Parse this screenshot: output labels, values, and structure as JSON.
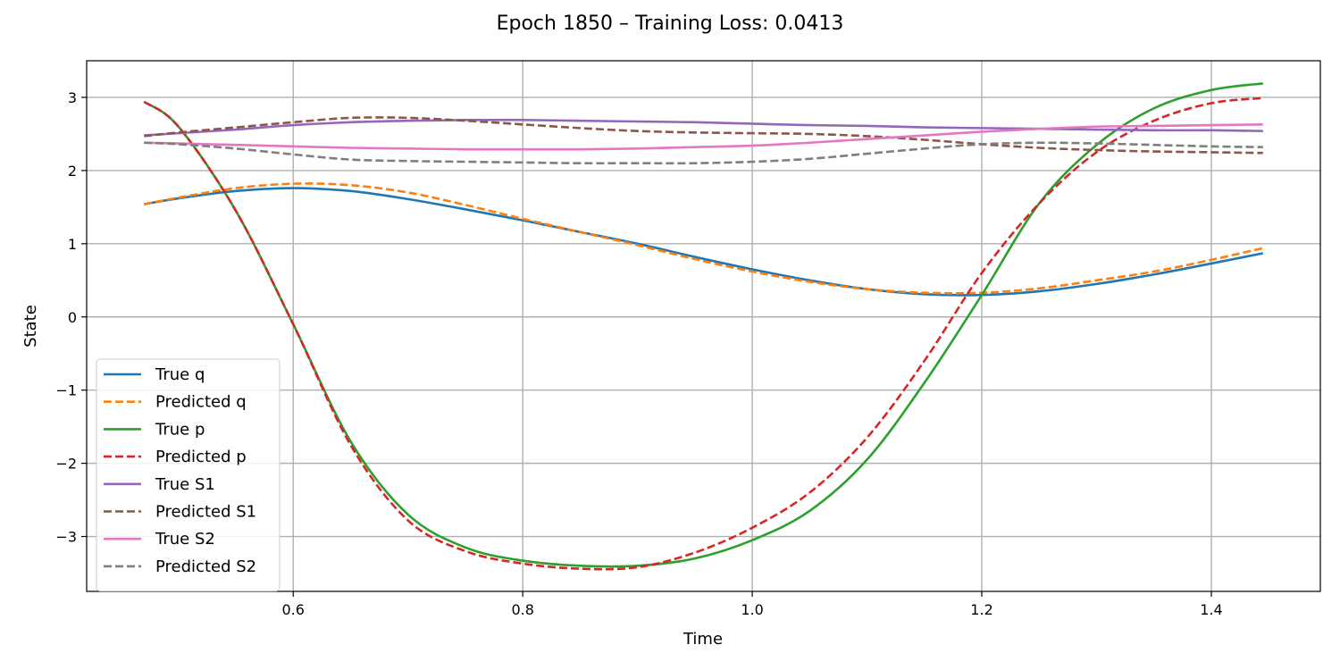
{
  "chart_data": {
    "type": "line",
    "title": "Epoch 1850 – Training Loss: 0.0413",
    "xlabel": "Time",
    "ylabel": "State",
    "xlim": [
      0.42,
      1.495
    ],
    "ylim": [
      -3.75,
      3.5
    ],
    "xticks": [
      0.6,
      0.8,
      1.0,
      1.2,
      1.4
    ],
    "xtick_labels": [
      "0.6",
      "0.8",
      "1.0",
      "1.2",
      "1.4"
    ],
    "yticks": [
      -3,
      -2,
      -1,
      0,
      1,
      2,
      3
    ],
    "ytick_labels": [
      "−3",
      "−2",
      "−1",
      "0",
      "1",
      "2",
      "3"
    ],
    "grid": true,
    "legend_position": "lower-left",
    "x": [
      0.47,
      0.5,
      0.55,
      0.6,
      0.65,
      0.7,
      0.75,
      0.8,
      0.85,
      0.9,
      0.95,
      1.0,
      1.05,
      1.1,
      1.15,
      1.2,
      1.25,
      1.3,
      1.35,
      1.4,
      1.445
    ],
    "series": [
      {
        "name": "True q",
        "color": "#1f77b4",
        "dash": "solid",
        "values": [
          1.54,
          1.62,
          1.72,
          1.76,
          1.72,
          1.61,
          1.47,
          1.32,
          1.16,
          1.0,
          0.82,
          0.65,
          0.5,
          0.38,
          0.31,
          0.3,
          0.35,
          0.45,
          0.58,
          0.73,
          0.87
        ]
      },
      {
        "name": "Predicted q",
        "color": "#ff7f0e",
        "dash": "dashed",
        "values": [
          1.54,
          1.63,
          1.76,
          1.82,
          1.8,
          1.7,
          1.53,
          1.34,
          1.16,
          0.98,
          0.79,
          0.62,
          0.48,
          0.38,
          0.33,
          0.33,
          0.39,
          0.5,
          0.62,
          0.78,
          0.94
        ]
      },
      {
        "name": "True p",
        "color": "#2ca02c",
        "dash": "solid",
        "values": [
          2.94,
          2.6,
          1.45,
          -0.1,
          -1.7,
          -2.7,
          -3.15,
          -3.33,
          -3.4,
          -3.4,
          -3.3,
          -3.05,
          -2.65,
          -1.95,
          -0.9,
          0.3,
          1.55,
          2.35,
          2.85,
          3.1,
          3.19
        ]
      },
      {
        "name": "Predicted p",
        "color": "#d62728",
        "dash": "dashed",
        "values": [
          2.94,
          2.6,
          1.45,
          -0.1,
          -1.75,
          -2.78,
          -3.2,
          -3.37,
          -3.44,
          -3.42,
          -3.22,
          -2.88,
          -2.4,
          -1.65,
          -0.6,
          0.6,
          1.55,
          2.25,
          2.68,
          2.92,
          2.99
        ]
      },
      {
        "name": "True S1",
        "color": "#9467bd",
        "dash": "solid",
        "values": [
          2.48,
          2.51,
          2.56,
          2.62,
          2.66,
          2.68,
          2.69,
          2.69,
          2.68,
          2.67,
          2.66,
          2.64,
          2.62,
          2.61,
          2.59,
          2.58,
          2.57,
          2.56,
          2.55,
          2.55,
          2.54
        ]
      },
      {
        "name": "Predicted S1",
        "color": "#8c564b",
        "dash": "dashed",
        "values": [
          2.47,
          2.52,
          2.59,
          2.66,
          2.72,
          2.72,
          2.68,
          2.63,
          2.58,
          2.54,
          2.52,
          2.51,
          2.5,
          2.47,
          2.42,
          2.36,
          2.31,
          2.28,
          2.26,
          2.25,
          2.24
        ]
      },
      {
        "name": "True S2",
        "color": "#e377c2",
        "dash": "solid",
        "values": [
          2.38,
          2.37,
          2.35,
          2.33,
          2.31,
          2.3,
          2.29,
          2.29,
          2.29,
          2.3,
          2.32,
          2.34,
          2.38,
          2.43,
          2.48,
          2.53,
          2.57,
          2.6,
          2.61,
          2.62,
          2.63
        ]
      },
      {
        "name": "Predicted S2",
        "color": "#7f7f7f",
        "dash": "dashed",
        "values": [
          2.38,
          2.36,
          2.3,
          2.22,
          2.15,
          2.13,
          2.12,
          2.11,
          2.1,
          2.1,
          2.1,
          2.12,
          2.16,
          2.23,
          2.3,
          2.36,
          2.38,
          2.37,
          2.35,
          2.33,
          2.32
        ]
      }
    ]
  }
}
